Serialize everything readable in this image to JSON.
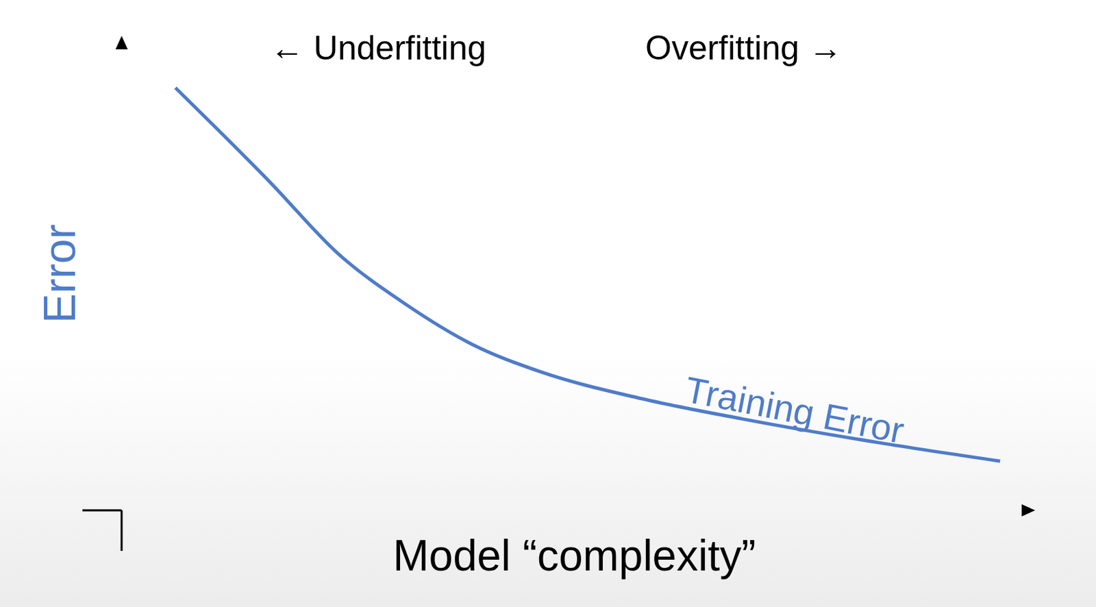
{
  "chart_data": {
    "type": "line",
    "x_label": "Model “complexity”",
    "y_label": "Error",
    "annotations": [
      "← Underfitting",
      "Overfitting →"
    ],
    "x": [
      0.59,
      1.63,
      2.37,
      3.11,
      3.85,
      4.59,
      5.7,
      6.81,
      8.3,
      9.63
    ],
    "series": [
      {
        "name": "Training Error",
        "color": "#4f7cc9",
        "values": [
          8.93,
          6.93,
          5.43,
          4.36,
          3.5,
          2.93,
          2.36,
          1.93,
          1.43,
          1.04
        ]
      }
    ],
    "xlim": [
      0,
      10
    ],
    "ylim": [
      0,
      10
    ],
    "tick_labels": false,
    "grid": false
  }
}
